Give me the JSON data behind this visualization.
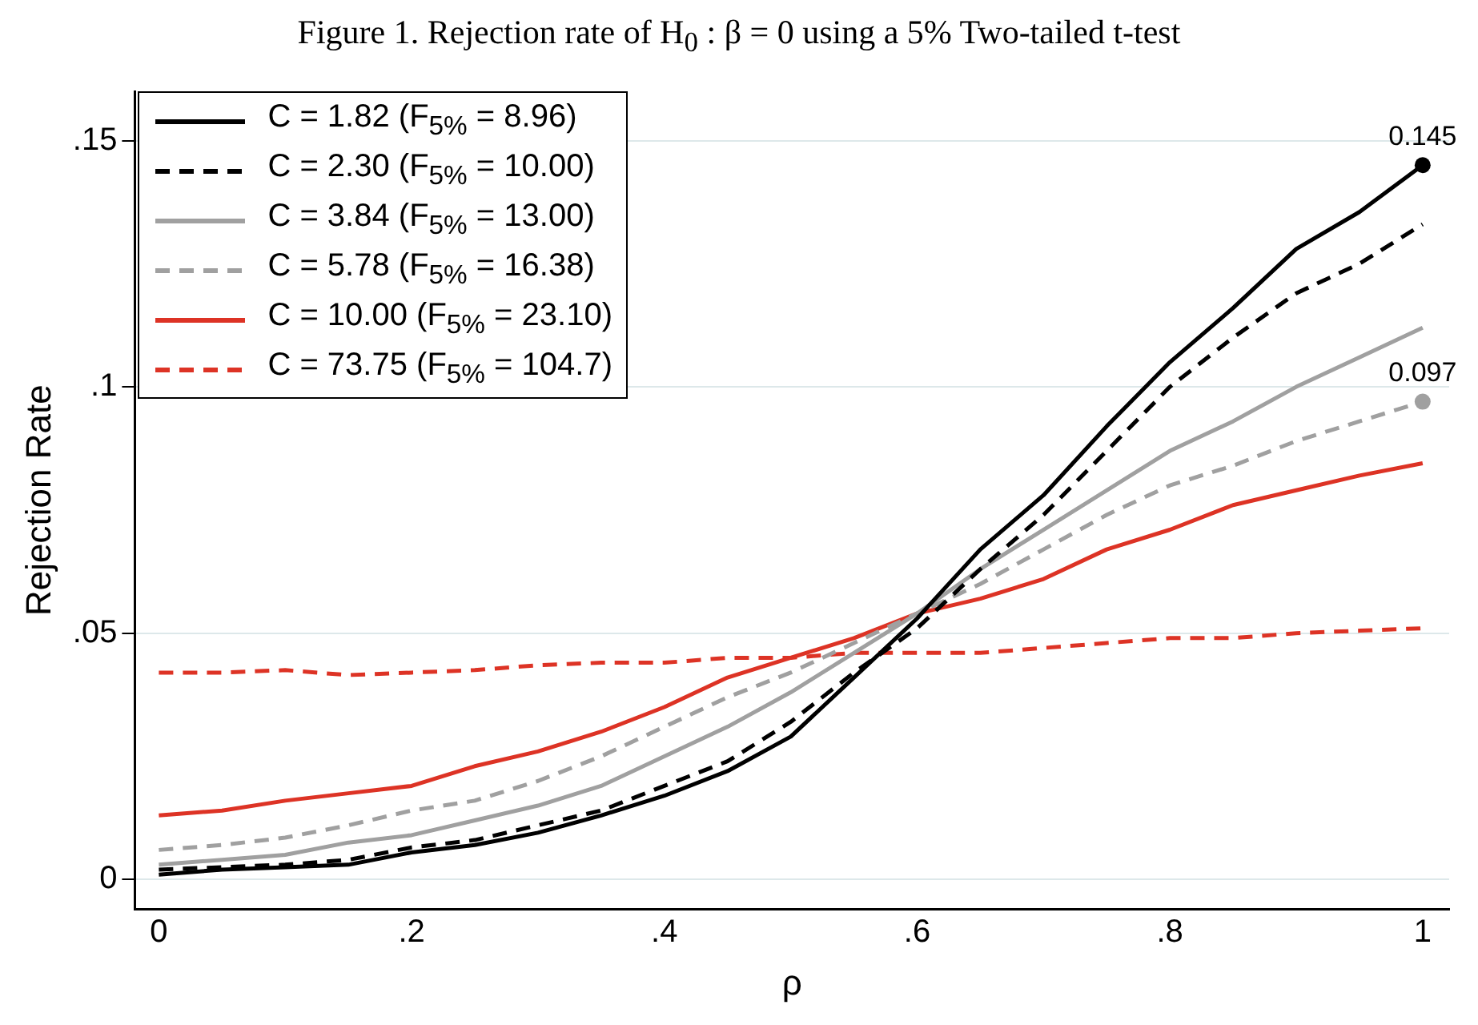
{
  "chart_data": {
    "type": "line",
    "title": "Figure 1. Rejection rate of H$_{0}$ : β = 0 using a 5% Two-tailed t-test",
    "xlabel": "ρ",
    "ylabel": "Rejection Rate",
    "x": [
      0,
      0.05,
      0.1,
      0.15,
      0.2,
      0.25,
      0.3,
      0.35,
      0.4,
      0.45,
      0.5,
      0.55,
      0.6,
      0.65,
      0.7,
      0.75,
      0.8,
      0.85,
      0.9,
      0.95,
      1
    ],
    "series": [
      {
        "name": "C = 1.82 (F$_{5%}$ = 8.96)",
        "color": "#000000",
        "line_style": "solid",
        "values": [
          0.001,
          0.002,
          0.0025,
          0.003,
          0.0055,
          0.007,
          0.0095,
          0.013,
          0.017,
          0.022,
          0.029,
          0.041,
          0.053,
          0.067,
          0.078,
          0.092,
          0.105,
          0.116,
          0.128,
          0.1355,
          0.145
        ]
      },
      {
        "name": "C = 2.30 (F$_{5%}$ = 10.00)",
        "color": "#000000",
        "line_style": "dashed",
        "values": [
          0.002,
          0.0025,
          0.003,
          0.004,
          0.0065,
          0.008,
          0.011,
          0.014,
          0.019,
          0.024,
          0.032,
          0.042,
          0.051,
          0.063,
          0.074,
          0.087,
          0.1,
          0.11,
          0.119,
          0.125,
          0.133
        ]
      },
      {
        "name": "C = 3.84 (F$_{5%}$ = 13.00)",
        "color": "#a0a0a0",
        "line_style": "solid",
        "values": [
          0.003,
          0.004,
          0.005,
          0.0075,
          0.009,
          0.012,
          0.015,
          0.019,
          0.025,
          0.031,
          0.038,
          0.046,
          0.054,
          0.063,
          0.071,
          0.079,
          0.087,
          0.093,
          0.1,
          0.106,
          0.112
        ]
      },
      {
        "name": "C = 5.78 (F$_{5%}$ = 16.38)",
        "color": "#a0a0a0",
        "line_style": "dashed",
        "values": [
          0.006,
          0.007,
          0.0085,
          0.011,
          0.014,
          0.016,
          0.02,
          0.025,
          0.031,
          0.037,
          0.042,
          0.048,
          0.054,
          0.06,
          0.067,
          0.074,
          0.08,
          0.084,
          0.089,
          0.093,
          0.097
        ]
      },
      {
        "name": "C = 10.00 (F$_{5%}$ = 23.10)",
        "color": "#dd3325",
        "line_style": "solid",
        "values": [
          0.013,
          0.014,
          0.016,
          0.0175,
          0.019,
          0.023,
          0.026,
          0.03,
          0.035,
          0.041,
          0.045,
          0.049,
          0.054,
          0.057,
          0.061,
          0.067,
          0.071,
          0.076,
          0.079,
          0.082,
          0.0845
        ]
      },
      {
        "name": "C = 73.75 (F$_{5%}$ = 104.7)",
        "color": "#dd3325",
        "line_style": "dashed",
        "values": [
          0.042,
          0.042,
          0.0425,
          0.0415,
          0.042,
          0.0425,
          0.0435,
          0.044,
          0.044,
          0.045,
          0.045,
          0.046,
          0.046,
          0.046,
          0.047,
          0.048,
          0.049,
          0.049,
          0.05,
          0.0505,
          0.051
        ]
      }
    ],
    "annotations": [
      {
        "text": "0.145",
        "x": 1,
        "y": 0.145
      },
      {
        "text": "0.097",
        "x": 1,
        "y": 0.097
      }
    ],
    "xlim": [
      -0.019,
      1.021
    ],
    "ylim": [
      -0.006,
      0.16
    ],
    "xticks": [
      0,
      {
        "value": 0.2,
        "label": ".2"
      },
      {
        "value": 0.4,
        "label": ".4"
      },
      {
        "value": 0.6,
        "label": ".6"
      },
      {
        "value": 0.8,
        "label": ".8"
      },
      1
    ],
    "yticks": [
      0,
      {
        "value": 0.05,
        "label": ".05"
      },
      {
        "value": 0.1,
        "label": ".1"
      },
      {
        "value": 0.15,
        "label": ".15"
      }
    ],
    "grid": "y",
    "legend": "top left",
    "marker": "none"
  }
}
